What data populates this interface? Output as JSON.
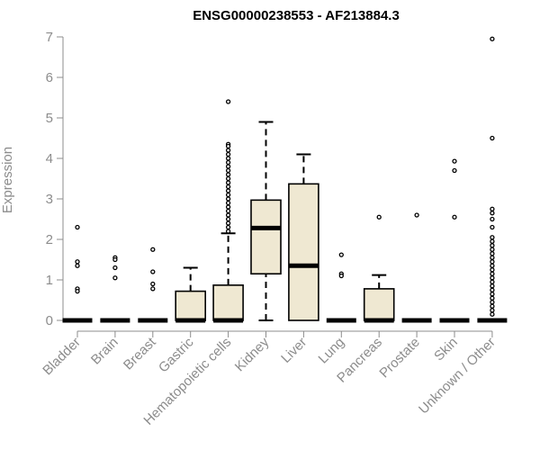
{
  "chart_data": {
    "type": "box",
    "title": "ENSG00000238553 - AF213884.3",
    "xlabel": "",
    "ylabel": "Expression",
    "ylim": [
      0,
      7
    ],
    "yticks": [
      0,
      1,
      2,
      3,
      4,
      5,
      6,
      7
    ],
    "grid": false,
    "colors": {
      "box_fill": "#efe8d2",
      "stroke": "#000000",
      "axis": "#8c8c8c"
    },
    "categories": [
      "Bladder",
      "Brain",
      "Breast",
      "Gastric",
      "Hematopoietic cells",
      "Kidney",
      "Liver",
      "Lung",
      "Pancreas",
      "Prostate",
      "Skin",
      "Unknown / Other"
    ],
    "boxes": [
      {
        "min": 0,
        "q1": 0,
        "median": 0,
        "q3": 0,
        "max": 0,
        "outliers": [
          2.3,
          1.45,
          1.35,
          0.78,
          0.72
        ]
      },
      {
        "min": 0,
        "q1": 0,
        "median": 0,
        "q3": 0,
        "max": 0,
        "outliers": [
          1.55,
          1.5,
          1.3,
          1.05
        ]
      },
      {
        "min": 0,
        "q1": 0,
        "median": 0,
        "q3": 0,
        "max": 0,
        "outliers": [
          1.75,
          1.2,
          0.9,
          0.78
        ]
      },
      {
        "min": 0,
        "q1": 0,
        "median": 0,
        "q3": 0.72,
        "max": 1.3,
        "outliers": []
      },
      {
        "min": 0,
        "q1": 0,
        "median": 0,
        "q3": 0.87,
        "max": 2.15,
        "outliers": [
          5.4,
          4.35,
          4.3,
          4.2,
          4.1,
          4.0,
          3.9,
          3.8,
          3.7,
          3.6,
          3.5,
          3.4,
          3.3,
          3.2,
          3.1,
          3.0,
          2.9,
          2.8,
          2.7,
          2.6,
          2.5,
          2.4,
          2.3,
          2.2
        ]
      },
      {
        "min": 0,
        "q1": 1.15,
        "median": 2.28,
        "q3": 2.97,
        "max": 4.9,
        "outliers": []
      },
      {
        "min": 0,
        "q1": 0,
        "median": 1.35,
        "q3": 3.37,
        "max": 4.1,
        "outliers": []
      },
      {
        "min": 0,
        "q1": 0,
        "median": 0,
        "q3": 0,
        "max": 0,
        "outliers": [
          1.62,
          1.15,
          1.1
        ]
      },
      {
        "min": 0,
        "q1": 0,
        "median": 0,
        "q3": 0.78,
        "max": 1.12,
        "outliers": [
          2.55
        ]
      },
      {
        "min": 0,
        "q1": 0,
        "median": 0,
        "q3": 0,
        "max": 0,
        "outliers": [
          2.6
        ]
      },
      {
        "min": 0,
        "q1": 0,
        "median": 0,
        "q3": 0,
        "max": 0,
        "outliers": [
          3.93,
          3.7,
          2.55
        ]
      },
      {
        "min": 0,
        "q1": 0,
        "median": 0,
        "q3": 0,
        "max": 0,
        "outliers": [
          6.95,
          4.5,
          2.75,
          2.65,
          2.5,
          2.3,
          2.05,
          1.95,
          1.85,
          1.75,
          1.65,
          1.55,
          1.45,
          1.35,
          1.25,
          1.15,
          1.05,
          0.95,
          0.85,
          0.75,
          0.65,
          0.55,
          0.45,
          0.35,
          0.25,
          0.15
        ]
      }
    ]
  }
}
